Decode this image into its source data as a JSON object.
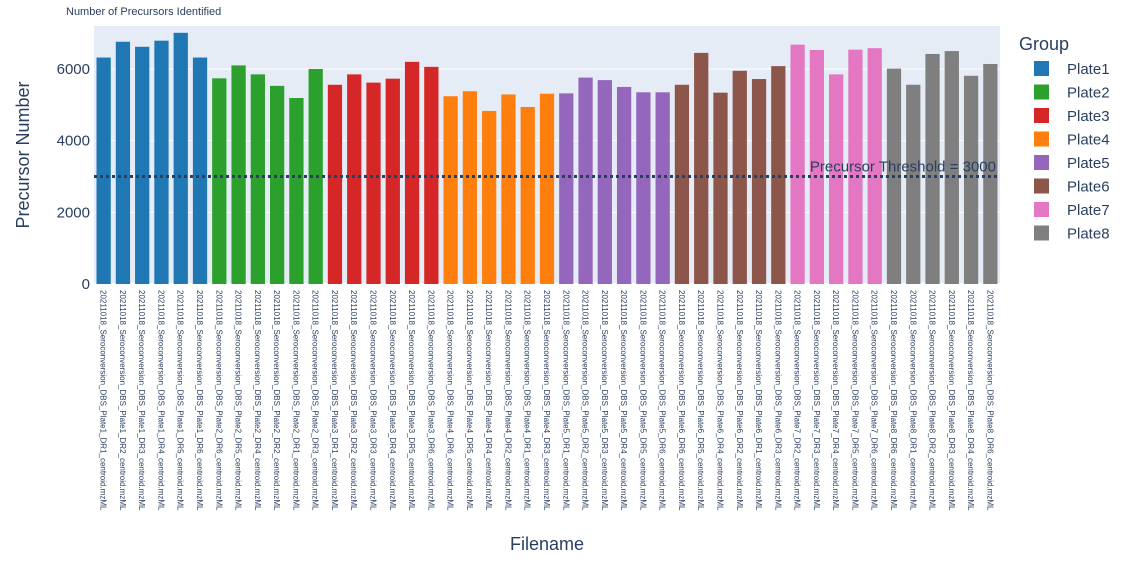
{
  "chart_data": {
    "type": "bar",
    "title": "Number of Precursors Identified",
    "xlabel": "Filename",
    "ylabel": "Precursor Number",
    "ylim": [
      0,
      7200
    ],
    "yticks": [
      0,
      2000,
      4000,
      6000
    ],
    "threshold": {
      "value": 3000,
      "label": "Precursor Threshold = 3000",
      "color": "#2a3f5f"
    },
    "legend": {
      "title": "Group",
      "position": "right"
    },
    "series": [
      {
        "name": "Plate1",
        "color": "#1f77b4",
        "categories": [
          "20211018_Seroconversion_DBS_Plate1_DR1_centroid.mzML",
          "20211018_Seroconversion_DBS_Plate1_DR2_centroid.mzML",
          "20211018_Seroconversion_DBS_Plate1_DR3_centroid.mzML",
          "20211018_Seroconversion_DBS_Plate1_DR4_centroid.mzML",
          "20211018_Seroconversion_DBS_Plate1_DR5_centroid.mzML",
          "20211018_Seroconversion_DBS_Plate1_DR6_centroid.mzML"
        ],
        "values": [
          6320,
          6760,
          6620,
          6790,
          7010,
          6320
        ]
      },
      {
        "name": "Plate2",
        "color": "#2ca02c",
        "categories": [
          "20211018_Seroconversion_DBS_Plate2_DR6_centroid.mzML",
          "20211018_Seroconversion_DBS_Plate2_DR5_centroid.mzML",
          "20211018_Seroconversion_DBS_Plate2_DR4_centroid.mzML",
          "20211018_Seroconversion_DBS_Plate2_DR2_centroid.mzML",
          "20211018_Seroconversion_DBS_Plate2_DR1_centroid.mzML",
          "20211018_Seroconversion_DBS_Plate2_DR3_centroid.mzML"
        ],
        "values": [
          5740,
          6100,
          5850,
          5530,
          5190,
          6000
        ]
      },
      {
        "name": "Plate3",
        "color": "#d62728",
        "categories": [
          "20211018_Seroconversion_DBS_Plate3_DR1_centroid.mzML",
          "20211018_Seroconversion_DBS_Plate3_DR2_centroid.mzML",
          "20211018_Seroconversion_DBS_Plate3_DR3_centroid.mzML",
          "20211018_Seroconversion_DBS_Plate3_DR4_centroid.mzML",
          "20211018_Seroconversion_DBS_Plate3_DR5_centroid.mzML",
          "20211018_Seroconversion_DBS_Plate3_DR6_centroid.mzML"
        ],
        "values": [
          5560,
          5850,
          5620,
          5730,
          6200,
          6060
        ]
      },
      {
        "name": "Plate4",
        "color": "#ff7f0e",
        "categories": [
          "20211018_Seroconversion_DBS_Plate4_DR6_centroid.mzML",
          "20211018_Seroconversion_DBS_Plate4_DR5_centroid.mzML",
          "20211018_Seroconversion_DBS_Plate4_DR4_centroid.mzML",
          "20211018_Seroconversion_DBS_Plate4_DR2_centroid.mzML",
          "20211018_Seroconversion_DBS_Plate4_DR1_centroid.mzML",
          "20211018_Seroconversion_DBS_Plate4_DR3_centroid.mzML"
        ],
        "values": [
          5240,
          5380,
          4830,
          5290,
          4940,
          5310
        ]
      },
      {
        "name": "Plate5",
        "color": "#9467bd",
        "categories": [
          "20211018_Seroconversion_DBS_Plate5_DR1_centroid.mzML",
          "20211018_Seroconversion_DBS_Plate5_DR2_centroid.mzML",
          "20211018_Seroconversion_DBS_Plate5_DR3_centroid.mzML",
          "20211018_Seroconversion_DBS_Plate5_DR4_centroid.mzML",
          "20211018_Seroconversion_DBS_Plate5_DR5_centroid.mzML",
          "20211018_Seroconversion_DBS_Plate5_DR6_centroid.mzML"
        ],
        "values": [
          5320,
          5760,
          5690,
          5500,
          5350,
          5350
        ]
      },
      {
        "name": "Plate6",
        "color": "#8c564b",
        "categories": [
          "20211018_Seroconversion_DBS_Plate6_DR6_centroid.mzML",
          "20211018_Seroconversion_DBS_Plate6_DR5_centroid.mzML",
          "20211018_Seroconversion_DBS_Plate6_DR4_centroid.mzML",
          "20211018_Seroconversion_DBS_Plate6_DR2_centroid.mzML",
          "20211018_Seroconversion_DBS_Plate6_DR1_centroid.mzML",
          "20211018_Seroconversion_DBS_Plate6_DR3_centroid.mzML"
        ],
        "values": [
          5560,
          6450,
          5340,
          5950,
          5720,
          6080
        ]
      },
      {
        "name": "Plate7",
        "color": "#e377c2",
        "categories": [
          "20211018_Seroconversion_DBS_Plate7_DR2_centroid.mzML",
          "20211018_Seroconversion_DBS_Plate7_DR3_centroid.mzML",
          "20211018_Seroconversion_DBS_Plate7_DR4_centroid.mzML",
          "20211018_Seroconversion_DBS_Plate7_DR5_centroid.mzML",
          "20211018_Seroconversion_DBS_Plate7_DR6_centroid.mzML"
        ],
        "values": [
          6680,
          6530,
          5850,
          6540,
          6580
        ]
      },
      {
        "name": "Plate8",
        "color": "#7f7f7f",
        "categories": [
          "20211018_Seroconversion_DBS_Plate8_DR6_centroid.mzML",
          "20211018_Seroconversion_DBS_Plate8_DR1_centroid.mzML",
          "20211018_Seroconversion_DBS_Plate8_DR2_centroid.mzML",
          "20211018_Seroconversion_DBS_Plate8_DR3_centroid.mzML",
          "20211018_Seroconversion_DBS_Plate8_DR4_centroid.mzML",
          "20211018_Seroconversion_DBS_Plate8_DR6_centroid.mzML"
        ],
        "values": [
          6010,
          5560,
          6420,
          6500,
          5810,
          6140
        ]
      }
    ]
  }
}
